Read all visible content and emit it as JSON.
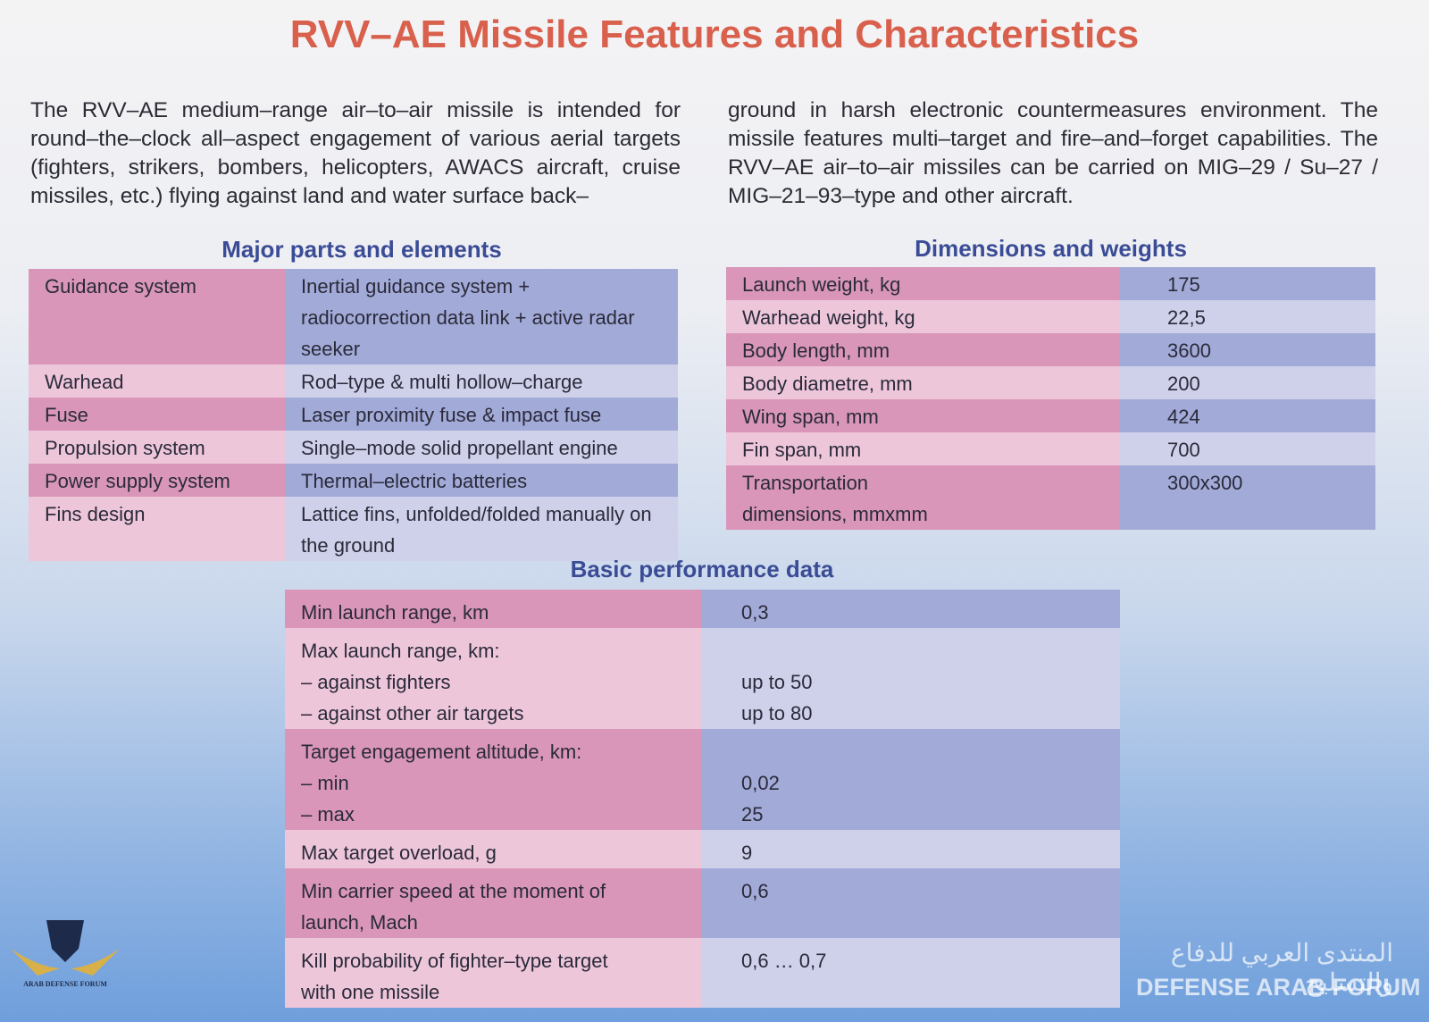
{
  "title": "RVV–AE Missile Features and Characteristics",
  "intro": [
    "The RVV–AE medium–range air–to–air missile is intended for round–the–clock all–aspect engagement of various aerial tar­gets (fighters, strikers, bombers, helicopters, AWACS aircraft, cruise missiles, etc.) flying against land and water surface back–",
    "ground in harsh electronic countermeasures environment. The missile features multi–target and fire–and–forget capabilities. The RVV–AE air–to–air missiles can be carried on MIG–29 / Su–27 / MIG–21–93–type and other aircraft."
  ],
  "parts": {
    "heading": "Major parts and elements",
    "rows": [
      [
        "Guidance system",
        "Inertial guidance system + radiocorrection data link + active radar seeker"
      ],
      [
        "Warhead",
        "Rod–type & multi hollow–charge"
      ],
      [
        "Fuse",
        "Laser proximity fuse & impact fuse"
      ],
      [
        "Propulsion system",
        "Single–mode solid propellant engine"
      ],
      [
        "Power supply system",
        "Thermal–electric batteries"
      ],
      [
        "Fins design",
        "Lattice fins, unfolded/folded manually on the ground"
      ]
    ]
  },
  "dimensions": {
    "heading": "Dimensions and weights",
    "rows": [
      [
        "Launch weight, kg",
        "175"
      ],
      [
        "Warhead weight, kg",
        "22,5"
      ],
      [
        "Body length, mm",
        "3600"
      ],
      [
        "Body diametre, mm",
        "200"
      ],
      [
        "Wing span, mm",
        "424"
      ],
      [
        "Fin span, mm",
        "700"
      ],
      [
        "Transportation dimensions, mmxmm",
        "300x300"
      ]
    ]
  },
  "performance": {
    "heading": "Basic performance data",
    "rows": [
      {
        "label": "Min launch range, km",
        "value": "0,3"
      },
      {
        "label": "Max launch range, km:",
        "items": [
          {
            "label": "– against fighters",
            "value": "up to 50"
          },
          {
            "label": "– against other air targets",
            "value": "up to 80"
          }
        ]
      },
      {
        "label": "Target engagement altitude, km:",
        "items": [
          {
            "label": "– min",
            "value": "0,02"
          },
          {
            "label": "– max",
            "value": "25"
          }
        ]
      },
      {
        "label": "Max target overload, g",
        "value": "9"
      },
      {
        "label": "Min carrier speed at the moment of launch, Mach",
        "value": "0,6"
      },
      {
        "label": "Kill probability of fighter–type target with one missile",
        "value": "0,6 … 0,7"
      }
    ]
  },
  "watermark": {
    "logo_text": "ARAB DEFENSE FORUM",
    "arabic": "المنتدى العربي للدفاع والتسليح",
    "english": "DEFENSE ARAB FORUM"
  }
}
